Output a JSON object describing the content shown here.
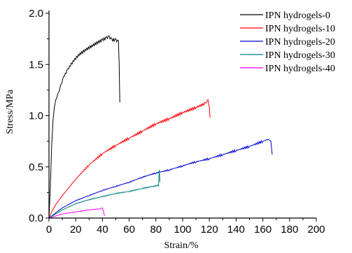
{
  "chart_data": {
    "type": "line",
    "title": "",
    "xlabel": "Strain/%",
    "ylabel": "Stress/MPa",
    "xlim": [
      0,
      200
    ],
    "ylim": [
      0,
      2.0
    ],
    "xticks": [
      "0",
      "20",
      "40",
      "60",
      "80",
      "100",
      "120",
      "140",
      "160",
      "180",
      "200"
    ],
    "yticks": [
      "0.0",
      "0.5",
      "1.0",
      "1.5",
      "2.0"
    ],
    "grid": false,
    "legend_position": "top-right",
    "series": [
      {
        "name": "IPN hydrogels-0",
        "color": "#000000",
        "points": [
          [
            0,
            0
          ],
          [
            1,
            0.3
          ],
          [
            2,
            0.7
          ],
          [
            3,
            0.95
          ],
          [
            4,
            1.08
          ],
          [
            5,
            1.15
          ],
          [
            7,
            1.22
          ],
          [
            9,
            1.3
          ],
          [
            11,
            1.38
          ],
          [
            14,
            1.45
          ],
          [
            18,
            1.53
          ],
          [
            22,
            1.59
          ],
          [
            27,
            1.64
          ],
          [
            32,
            1.68
          ],
          [
            37,
            1.72
          ],
          [
            40,
            1.74
          ],
          [
            43,
            1.76
          ],
          [
            45,
            1.77
          ],
          [
            47,
            1.74
          ],
          [
            50,
            1.74
          ],
          [
            52,
            1.72
          ],
          [
            52.5,
            1.5
          ],
          [
            53,
            1.13
          ]
        ]
      },
      {
        "name": "IPN hydrogels-10",
        "color": "#ff0000",
        "points": [
          [
            0,
            0
          ],
          [
            2,
            0.06
          ],
          [
            5,
            0.13
          ],
          [
            10,
            0.22
          ],
          [
            15,
            0.3
          ],
          [
            20,
            0.38
          ],
          [
            30,
            0.52
          ],
          [
            40,
            0.63
          ],
          [
            50,
            0.71
          ],
          [
            60,
            0.78
          ],
          [
            70,
            0.85
          ],
          [
            80,
            0.92
          ],
          [
            90,
            0.97
          ],
          [
            100,
            1.03
          ],
          [
            110,
            1.08
          ],
          [
            117,
            1.12
          ],
          [
            119,
            1.15
          ],
          [
            120,
            1.08
          ],
          [
            120.5,
            0.98
          ]
        ]
      },
      {
        "name": "IPN hydrogels-20",
        "color": "#0000cd",
        "points": [
          [
            0,
            0
          ],
          [
            5,
            0.05
          ],
          [
            10,
            0.1
          ],
          [
            20,
            0.17
          ],
          [
            30,
            0.22
          ],
          [
            40,
            0.27
          ],
          [
            50,
            0.31
          ],
          [
            60,
            0.35
          ],
          [
            70,
            0.4
          ],
          [
            80,
            0.44
          ],
          [
            90,
            0.47
          ],
          [
            100,
            0.51
          ],
          [
            110,
            0.55
          ],
          [
            120,
            0.58
          ],
          [
            130,
            0.62
          ],
          [
            140,
            0.66
          ],
          [
            150,
            0.7
          ],
          [
            160,
            0.75
          ],
          [
            164,
            0.77
          ],
          [
            166,
            0.75
          ],
          [
            167,
            0.62
          ]
        ]
      },
      {
        "name": "IPN hydrogels-30",
        "color": "#008080",
        "points": [
          [
            0,
            0
          ],
          [
            5,
            0.04
          ],
          [
            10,
            0.08
          ],
          [
            20,
            0.14
          ],
          [
            30,
            0.18
          ],
          [
            40,
            0.21
          ],
          [
            50,
            0.24
          ],
          [
            60,
            0.26
          ],
          [
            70,
            0.29
          ],
          [
            78,
            0.31
          ],
          [
            82,
            0.32
          ],
          [
            82.5,
            0.48
          ],
          [
            83,
            0.35
          ]
        ]
      },
      {
        "name": "IPN hydrogels-40",
        "color": "#ff00ff",
        "points": [
          [
            0,
            0
          ],
          [
            5,
            0.02
          ],
          [
            10,
            0.04
          ],
          [
            20,
            0.06
          ],
          [
            30,
            0.08
          ],
          [
            38,
            0.09
          ],
          [
            40,
            0.1
          ],
          [
            41,
            0.05
          ],
          [
            41.5,
            0.02
          ]
        ]
      }
    ]
  }
}
